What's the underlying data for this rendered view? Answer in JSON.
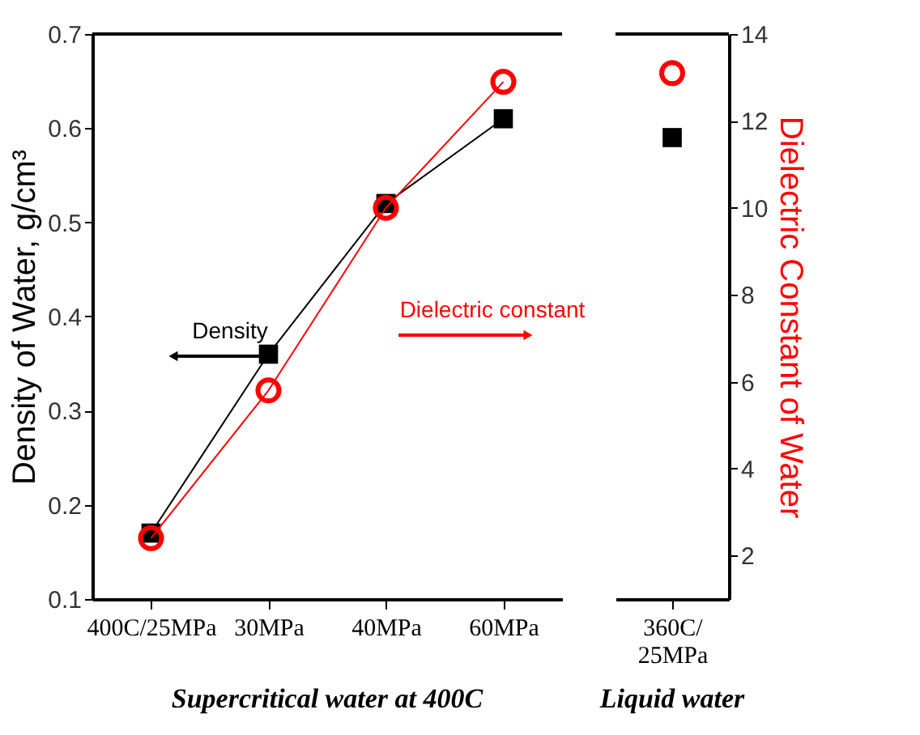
{
  "chart_data": [
    {
      "type": "line",
      "ylabel": "Density of Water, g/cm³",
      "categories": [
        "400C/25MPa",
        "30MPa",
        "40MPa",
        "60MPa"
      ],
      "ylim": [
        0.1,
        0.7
      ],
      "yticks": [
        0.1,
        0.2,
        0.3,
        0.4,
        0.5,
        0.6,
        0.7
      ],
      "y2lim": [
        1,
        14
      ],
      "grid": false,
      "annotations": [
        "Supercritical water at 400C"
      ],
      "series": [
        {
          "name": "Density",
          "color": "#000000",
          "marker": "square",
          "values": [
            0.17,
            0.36,
            0.52,
            0.61
          ]
        },
        {
          "name": "Dielectric constant",
          "color": "#ff0000",
          "marker": "circle",
          "axis": "y2",
          "values": [
            2.4,
            5.8,
            10,
            12.9
          ]
        }
      ]
    },
    {
      "type": "scatter",
      "y2label": "Dielectric Constant of Water",
      "categories": [
        "360C/\n25MPa"
      ],
      "ylim": [
        0.1,
        0.7
      ],
      "y2lim": [
        1,
        14
      ],
      "y2ticks": [
        2,
        4,
        6,
        8,
        10,
        12,
        14
      ],
      "grid": false,
      "annotations": [
        "Liquid water"
      ],
      "series": [
        {
          "color": "#000000",
          "marker": "square",
          "values": [
            0.59
          ]
        },
        {
          "color": "#ff0000",
          "marker": "circle",
          "axis": "y2",
          "values": [
            13.1
          ]
        }
      ]
    }
  ]
}
